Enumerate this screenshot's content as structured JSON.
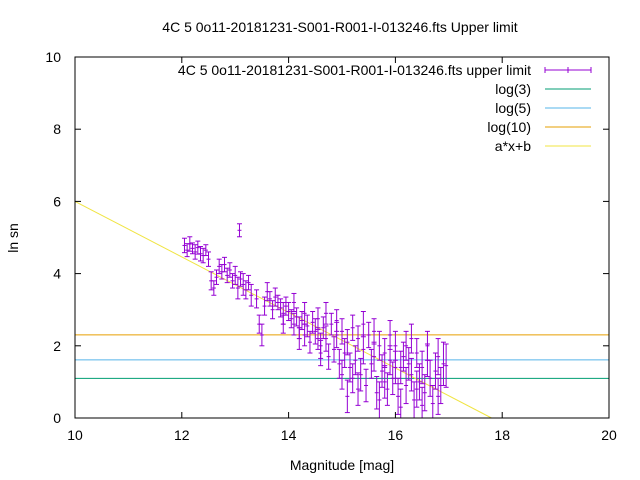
{
  "chart_data": {
    "type": "scatter",
    "title": "4C 5 0o11-20181231-S001-R001-I-013246.fts Upper limit",
    "xlabel": "Magnitude [mag]",
    "ylabel": "ln sn",
    "xlim": [
      10,
      20
    ],
    "ylim": [
      0,
      10
    ],
    "x_ticks": [
      "10",
      "12",
      "14",
      "16",
      "18",
      "20"
    ],
    "y_ticks": [
      "0",
      "2",
      "4",
      "6",
      "8",
      "10"
    ],
    "grid": false,
    "legend_position": "top-right",
    "colors": {
      "points": "#9400d3",
      "log3": "#009e73",
      "log5": "#56b4e9",
      "log10": "#e69f00",
      "fit": "#f0e442",
      "axes": "#000000"
    },
    "legend": [
      {
        "key": "points",
        "label": "4C 5 0o11-20181231-S001-R001-I-013246.fts upper limit"
      },
      {
        "key": "log3",
        "label": "log(3)"
      },
      {
        "key": "log5",
        "label": "log(5)"
      },
      {
        "key": "log10",
        "label": "log(10)"
      },
      {
        "key": "fit",
        "label": "a*x+b"
      }
    ],
    "hlines": [
      {
        "key": "log3",
        "y": 1.0986
      },
      {
        "key": "log5",
        "y": 1.6094
      },
      {
        "key": "log10",
        "y": 2.3026
      }
    ],
    "fit_line": {
      "x": [
        10.0,
        17.8
      ],
      "y": [
        6.0,
        0.0
      ]
    },
    "series": [
      {
        "key": "points",
        "points": [
          [
            12.05,
            4.78,
            0.2
          ],
          [
            12.1,
            4.65,
            0.18
          ],
          [
            12.15,
            4.82,
            0.2
          ],
          [
            12.2,
            4.7,
            0.15
          ],
          [
            12.25,
            4.6,
            0.2
          ],
          [
            12.3,
            4.72,
            0.18
          ],
          [
            12.35,
            4.55,
            0.2
          ],
          [
            12.4,
            4.5,
            0.2
          ],
          [
            12.45,
            4.65,
            0.15
          ],
          [
            12.5,
            4.4,
            0.2
          ],
          [
            12.55,
            3.8,
            0.25
          ],
          [
            12.6,
            3.6,
            0.2
          ],
          [
            12.65,
            3.9,
            0.2
          ],
          [
            12.7,
            4.2,
            0.2
          ],
          [
            12.75,
            4.05,
            0.2
          ],
          [
            12.8,
            4.25,
            0.2
          ],
          [
            12.85,
            3.95,
            0.2
          ],
          [
            12.9,
            4.1,
            0.2
          ],
          [
            12.95,
            3.8,
            0.2
          ],
          [
            13.0,
            3.95,
            0.25
          ],
          [
            13.05,
            3.6,
            0.3
          ],
          [
            13.08,
            5.2,
            0.18
          ],
          [
            13.1,
            3.85,
            0.2
          ],
          [
            13.15,
            3.7,
            0.3
          ],
          [
            13.2,
            3.55,
            0.25
          ],
          [
            13.25,
            3.75,
            0.2
          ],
          [
            13.3,
            3.4,
            0.3
          ],
          [
            13.4,
            3.3,
            0.25
          ],
          [
            13.45,
            2.6,
            0.25
          ],
          [
            13.5,
            2.3,
            0.3
          ],
          [
            13.55,
            3.1,
            0.25
          ],
          [
            13.6,
            3.5,
            0.25
          ],
          [
            13.65,
            3.3,
            0.2
          ],
          [
            13.7,
            3.0,
            0.25
          ],
          [
            13.75,
            3.35,
            0.25
          ],
          [
            13.8,
            3.2,
            0.2
          ],
          [
            13.85,
            3.05,
            0.25
          ],
          [
            13.9,
            2.9,
            0.3
          ],
          [
            13.95,
            3.1,
            0.25
          ],
          [
            14.0,
            2.95,
            0.25
          ],
          [
            14.05,
            2.75,
            0.25
          ],
          [
            14.1,
            2.6,
            0.3
          ],
          [
            14.15,
            2.8,
            0.25
          ],
          [
            14.2,
            2.5,
            0.3
          ],
          [
            14.25,
            2.7,
            0.25
          ],
          [
            14.3,
            2.3,
            0.3
          ],
          [
            14.35,
            2.55,
            0.3
          ],
          [
            14.4,
            2.1,
            0.3
          ],
          [
            14.45,
            2.65,
            0.3
          ],
          [
            14.5,
            2.4,
            0.35
          ],
          [
            14.55,
            2.75,
            0.3
          ],
          [
            14.6,
            2.0,
            0.35
          ],
          [
            14.65,
            2.5,
            0.3
          ],
          [
            14.7,
            2.2,
            0.35
          ],
          [
            14.75,
            1.7,
            0.35
          ],
          [
            14.8,
            2.6,
            0.3
          ],
          [
            14.85,
            1.9,
            0.35
          ],
          [
            14.9,
            2.3,
            0.35
          ],
          [
            14.95,
            1.5,
            0.4
          ],
          [
            15.0,
            2.4,
            0.35
          ],
          [
            15.05,
            1.8,
            0.4
          ],
          [
            15.1,
            2.1,
            0.35
          ],
          [
            15.15,
            1.4,
            0.4
          ],
          [
            15.2,
            2.5,
            0.35
          ],
          [
            15.25,
            1.6,
            0.4
          ],
          [
            15.3,
            2.2,
            0.35
          ],
          [
            15.35,
            1.2,
            0.45
          ],
          [
            15.4,
            1.9,
            0.4
          ],
          [
            15.45,
            0.9,
            0.45
          ],
          [
            15.5,
            2.3,
            0.35
          ],
          [
            15.55,
            1.5,
            0.4
          ],
          [
            15.6,
            1.7,
            0.4
          ],
          [
            15.65,
            0.7,
            0.45
          ],
          [
            15.7,
            2.0,
            0.4
          ],
          [
            15.75,
            1.3,
            0.45
          ],
          [
            15.8,
            1.8,
            0.4
          ],
          [
            15.85,
            0.8,
            0.45
          ],
          [
            15.9,
            1.6,
            0.4
          ],
          [
            15.95,
            1.1,
            0.45
          ],
          [
            16.0,
            2.0,
            0.4
          ],
          [
            16.05,
            0.6,
            0.5
          ],
          [
            16.1,
            1.4,
            0.45
          ],
          [
            16.15,
            1.7,
            0.4
          ],
          [
            16.2,
            0.9,
            0.5
          ],
          [
            16.25,
            1.5,
            0.45
          ],
          [
            16.3,
            1.2,
            0.45
          ],
          [
            16.35,
            0.5,
            0.5
          ],
          [
            16.4,
            1.8,
            0.4
          ],
          [
            16.45,
            1.0,
            0.5
          ],
          [
            16.5,
            1.4,
            0.45
          ],
          [
            16.55,
            0.7,
            0.5
          ],
          [
            16.6,
            1.6,
            0.45
          ],
          [
            16.65,
            1.1,
            0.5
          ],
          [
            16.7,
            0.4,
            0.5
          ],
          [
            16.75,
            1.3,
            0.5
          ],
          [
            16.8,
            1.7,
            0.5
          ],
          [
            16.85,
            0.9,
            0.5
          ],
          [
            16.9,
            1.5,
            0.6
          ],
          [
            16.95,
            1.45,
            0.6
          ],
          [
            14.1,
            3.2,
            0.25
          ],
          [
            14.3,
            2.9,
            0.3
          ],
          [
            14.55,
            2.2,
            0.3
          ],
          [
            14.7,
            2.9,
            0.3
          ],
          [
            14.9,
            2.7,
            0.3
          ],
          [
            15.0,
            1.2,
            0.4
          ],
          [
            15.2,
            1.1,
            0.4
          ],
          [
            15.4,
            2.6,
            0.35
          ],
          [
            15.6,
            2.4,
            0.35
          ],
          [
            15.8,
            1.0,
            0.45
          ],
          [
            16.0,
            1.4,
            0.45
          ],
          [
            16.2,
            2.0,
            0.4
          ],
          [
            16.4,
            0.8,
            0.5
          ],
          [
            16.6,
            2.0,
            0.4
          ],
          [
            16.8,
            0.6,
            0.5
          ],
          [
            15.1,
            0.6,
            0.45
          ],
          [
            15.3,
            0.8,
            0.45
          ],
          [
            15.7,
            0.5,
            0.5
          ],
          [
            16.1,
            0.3,
            0.5
          ],
          [
            16.5,
            0.35,
            0.5
          ],
          [
            13.9,
            2.6,
            0.25
          ],
          [
            14.2,
            2.2,
            0.3
          ],
          [
            14.6,
            1.8,
            0.35
          ],
          [
            15.9,
            2.3,
            0.4
          ],
          [
            16.3,
            2.2,
            0.4
          ]
        ]
      }
    ]
  }
}
